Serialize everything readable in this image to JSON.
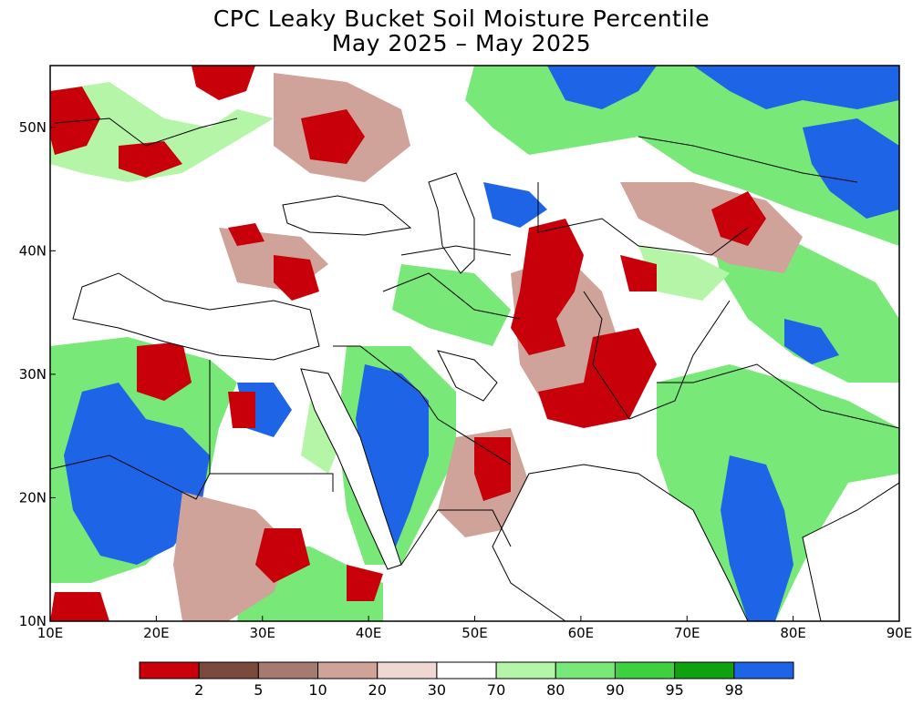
{
  "title": {
    "line1": "CPC Leaky Bucket Soil Moisture Percentile",
    "line2": "May 2025 – May 2025"
  },
  "map": {
    "lon_range": [
      10,
      90
    ],
    "lat_range": [
      10,
      55
    ],
    "x_ticks": [
      "10E",
      "20E",
      "30E",
      "40E",
      "50E",
      "60E",
      "70E",
      "80E",
      "90E"
    ],
    "y_ticks": [
      "10N",
      "20N",
      "30N",
      "40N",
      "50N"
    ]
  },
  "legend": {
    "colors": [
      "#c8000a",
      "#7a4a3e",
      "#a57a70",
      "#cfa29a",
      "#f0d8d2",
      "#ffffff",
      "#b4f5a8",
      "#78e878",
      "#3ed03e",
      "#10a010",
      "#1e64e6"
    ],
    "labels": [
      "2",
      "5",
      "10",
      "20",
      "30",
      "70",
      "80",
      "90",
      "95",
      "98"
    ]
  }
}
